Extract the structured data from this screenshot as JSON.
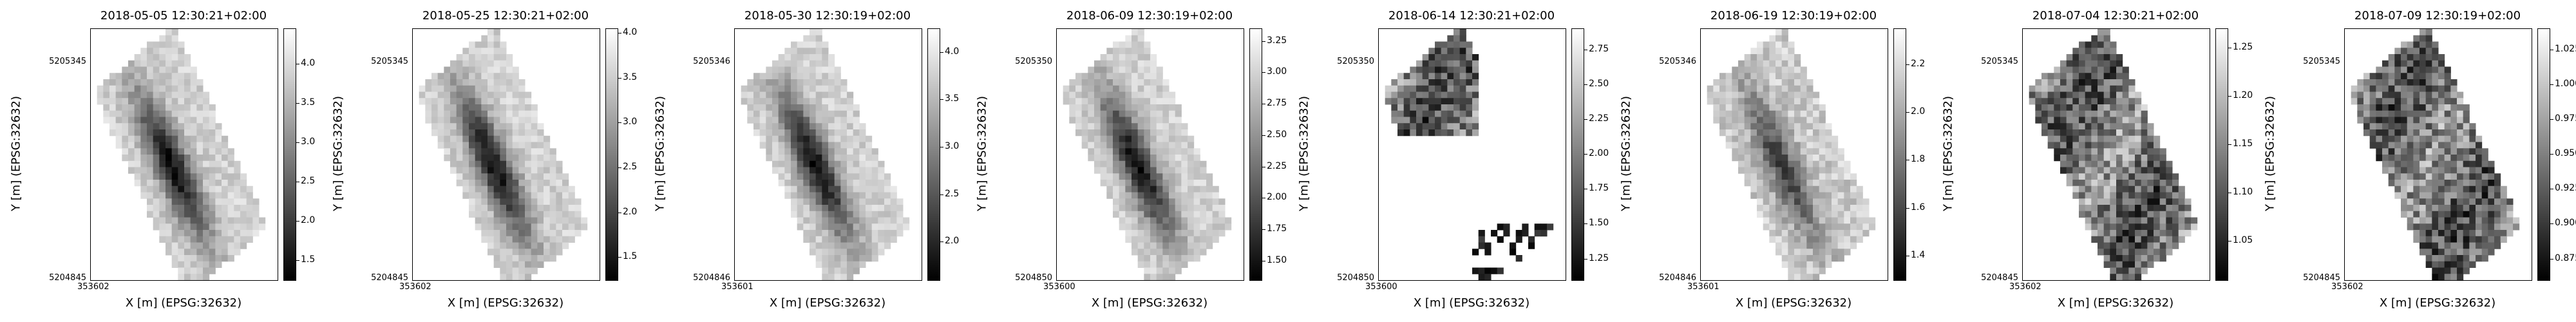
{
  "chart_data": [
    {
      "type": "heatmap",
      "title": "2018-05-05 12:30:21+02:00",
      "xlabel": "X [m] (EPSG:32632)",
      "ylabel": "Y [m] (EPSG:32632)",
      "xtick_label": "353602",
      "ytick_labels": [
        "5205345",
        "5204845"
      ],
      "colorbar": {
        "ticks": [
          1.5,
          2.0,
          2.5,
          3.0,
          3.5,
          4.0
        ],
        "tick_labels": [
          "1.5",
          "2.0",
          "2.5",
          "3.0",
          "3.5",
          "4.0"
        ],
        "range": [
          1.25,
          4.45
        ]
      },
      "colormap": "gray",
      "gaps": false
    },
    {
      "type": "heatmap",
      "title": "2018-05-25 12:30:21+02:00",
      "xlabel": "X [m] (EPSG:32632)",
      "ylabel": "Y [m] (EPSG:32632)",
      "xtick_label": "353602",
      "ytick_labels": [
        "5205345",
        "5204845"
      ],
      "colorbar": {
        "ticks": [
          1.5,
          2.0,
          2.5,
          3.0,
          3.5,
          4.0
        ],
        "tick_labels": [
          "1.5",
          "2.0",
          "2.5",
          "3.0",
          "3.5",
          "4.0"
        ],
        "range": [
          1.25,
          4.05
        ]
      },
      "colormap": "gray",
      "gaps": false
    },
    {
      "type": "heatmap",
      "title": "2018-05-30 12:30:19+02:00",
      "xlabel": "X [m] (EPSG:32632)",
      "ylabel": "Y [m] (EPSG:32632)",
      "xtick_label": "353601",
      "ytick_labels": [
        "5205346",
        "5204846"
      ],
      "colorbar": {
        "ticks": [
          2.0,
          2.5,
          3.0,
          3.5,
          4.0
        ],
        "tick_labels": [
          "2.0",
          "2.5",
          "3.0",
          "3.5",
          "4.0"
        ],
        "range": [
          1.6,
          4.25
        ]
      },
      "colormap": "gray",
      "gaps": false
    },
    {
      "type": "heatmap",
      "title": "2018-06-09 12:30:19+02:00",
      "xlabel": "X [m] (EPSG:32632)",
      "ylabel": "Y [m] (EPSG:32632)",
      "xtick_label": "353600",
      "ytick_labels": [
        "5205350",
        "5204850"
      ],
      "colorbar": {
        "ticks": [
          1.5,
          1.75,
          2.0,
          2.25,
          2.5,
          2.75,
          3.0,
          3.25
        ],
        "tick_labels": [
          "1.50",
          "1.75",
          "2.00",
          "2.25",
          "2.50",
          "2.75",
          "3.00",
          "3.25"
        ],
        "range": [
          1.35,
          3.35
        ]
      },
      "colormap": "gray",
      "gaps": false
    },
    {
      "type": "heatmap",
      "title": "2018-06-14 12:30:21+02:00",
      "xlabel": "X [m] (EPSG:32632)",
      "ylabel": "Y [m] (EPSG:32632)",
      "xtick_label": "353600",
      "ytick_labels": [
        "5205350",
        "5204850"
      ],
      "colorbar": {
        "ticks": [
          1.25,
          1.5,
          1.75,
          2.0,
          2.25,
          2.5,
          2.75
        ],
        "tick_labels": [
          "1.25",
          "1.50",
          "1.75",
          "2.00",
          "2.25",
          "2.50",
          "2.75"
        ],
        "range": [
          1.1,
          2.9
        ]
      },
      "colormap": "gray",
      "gaps": true
    },
    {
      "type": "heatmap",
      "title": "2018-06-19 12:30:19+02:00",
      "xlabel": "X [m] (EPSG:32632)",
      "ylabel": "Y [m] (EPSG:32632)",
      "xtick_label": "353601",
      "ytick_labels": [
        "5205346",
        "5204846"
      ],
      "colorbar": {
        "ticks": [
          1.4,
          1.6,
          1.8,
          2.0,
          2.2
        ],
        "tick_labels": [
          "1.4",
          "1.6",
          "1.8",
          "2.0",
          "2.2"
        ],
        "range": [
          1.3,
          2.35
        ]
      },
      "colormap": "gray",
      "gaps": false
    },
    {
      "type": "heatmap",
      "title": "2018-07-04 12:30:21+02:00",
      "xlabel": "X [m] (EPSG:32632)",
      "ylabel": "Y [m] (EPSG:32632)",
      "xtick_label": "353602",
      "ytick_labels": [
        "5205345",
        "5204845"
      ],
      "colorbar": {
        "ticks": [
          1.05,
          1.1,
          1.15,
          1.2,
          1.25
        ],
        "tick_labels": [
          "1.05",
          "1.10",
          "1.15",
          "1.20",
          "1.25"
        ],
        "range": [
          1.01,
          1.27
        ]
      },
      "colormap": "gray",
      "gaps": false
    },
    {
      "type": "heatmap",
      "title": "2018-07-09 12:30:19+02:00",
      "xlabel": "X [m] (EPSG:32632)",
      "ylabel": "Y [m] (EPSG:32632)",
      "xtick_label": "353602",
      "ytick_labels": [
        "5205345",
        "5204845"
      ],
      "colorbar": {
        "ticks": [
          0.875,
          0.9,
          0.925,
          0.95,
          0.975,
          1.0,
          1.025
        ],
        "tick_labels": [
          "0.875",
          "0.900",
          "0.925",
          "0.950",
          "0.975",
          "1.000",
          "1.025"
        ],
        "range": [
          0.86,
          1.04
        ]
      },
      "colormap": "gray",
      "gaps": false
    }
  ]
}
